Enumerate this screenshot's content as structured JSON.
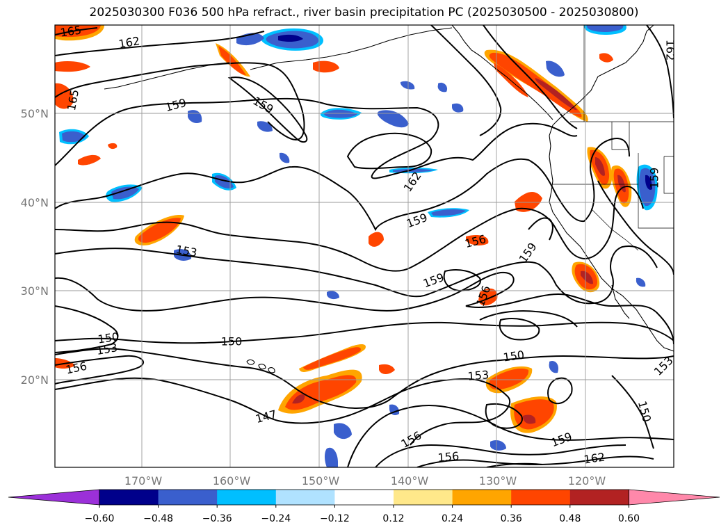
{
  "title": "2025030300 F036 500 hPa refract., river basin precipitation PC (2025030500 - 2025030800)",
  "axes": {
    "lat_labels": [
      "50°N",
      "40°N",
      "30°N",
      "20°N"
    ],
    "lon_labels": [
      "170°W",
      "160°W",
      "150°W",
      "140°W",
      "130°W",
      "120°W"
    ]
  },
  "contour_labels": [
    "165",
    "162",
    "165",
    "159",
    "159",
    "162",
    "159",
    "153",
    "156",
    "159",
    "159",
    "156",
    "150",
    "153",
    "156",
    "150",
    "147",
    "150",
    "153",
    "156",
    "156",
    "159",
    "162",
    "150",
    "153",
    "162",
    "159"
  ],
  "colorbar": {
    "ticks": [
      "−0.60",
      "−0.48",
      "−0.36",
      "−0.24",
      "−0.12",
      "0.12",
      "0.24",
      "0.36",
      "0.48",
      "0.60"
    ],
    "colors": [
      "#9b30d9",
      "#00008b",
      "#3a5fcd",
      "#00bfff",
      "#b0e2ff",
      "#ffffff",
      "#ffe88a",
      "#ffa500",
      "#ff4500",
      "#b22222",
      "#ff88aa"
    ]
  }
}
